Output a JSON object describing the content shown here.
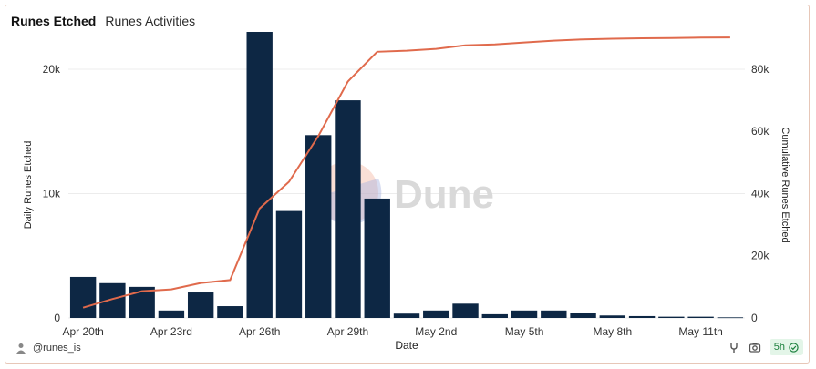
{
  "tabs": [
    {
      "label": "Runes Etched",
      "active": true
    },
    {
      "label": "Runes Activities",
      "active": false
    }
  ],
  "footer": {
    "author": "@runes_is",
    "refresh_label": "5h"
  },
  "watermark": "Dune",
  "colors": {
    "bar": "#0d2744",
    "line": "#e06a4c",
    "grid": "#ececec",
    "axis_text": "#333333"
  },
  "chart_data": {
    "type": "bar",
    "xlabel": "Date",
    "ylabel_left": "Daily Runes Etched",
    "ylabel_right": "Cumulative Runes Etched",
    "y_left_ticks": [
      {
        "v": 0,
        "label": "0"
      },
      {
        "v": 10000,
        "label": "10k"
      },
      {
        "v": 20000,
        "label": "20k"
      }
    ],
    "y_right_ticks": [
      {
        "v": 0,
        "label": "0"
      },
      {
        "v": 20000,
        "label": "20k"
      },
      {
        "v": 40000,
        "label": "40k"
      },
      {
        "v": 60000,
        "label": "60k"
      },
      {
        "v": 80000,
        "label": "80k"
      }
    ],
    "ylim_left": [
      0,
      23000
    ],
    "ylim_right": [
      0,
      92000
    ],
    "x_tick_labels": [
      {
        "idx": 0,
        "label": "Apr 20th"
      },
      {
        "idx": 3,
        "label": "Apr 23rd"
      },
      {
        "idx": 6,
        "label": "Apr 26th"
      },
      {
        "idx": 9,
        "label": "Apr 29th"
      },
      {
        "idx": 12,
        "label": "May 2nd"
      },
      {
        "idx": 15,
        "label": "May 5th"
      },
      {
        "idx": 18,
        "label": "May 8th"
      },
      {
        "idx": 21,
        "label": "May 11th"
      }
    ],
    "categories": [
      "2024-04-20",
      "2024-04-21",
      "2024-04-22",
      "2024-04-23",
      "2024-04-24",
      "2024-04-25",
      "2024-04-26",
      "2024-04-27",
      "2024-04-28",
      "2024-04-29",
      "2024-04-30",
      "2024-05-01",
      "2024-05-02",
      "2024-05-03",
      "2024-05-04",
      "2024-05-05",
      "2024-05-06",
      "2024-05-07",
      "2024-05-08",
      "2024-05-09",
      "2024-05-10",
      "2024-05-11",
      "2024-05-12"
    ],
    "series": [
      {
        "name": "Daily Runes Etched",
        "type": "bar",
        "axis": "left",
        "values": [
          3300,
          2800,
          2500,
          600,
          2050,
          950,
          23000,
          8600,
          14700,
          17500,
          9600,
          350,
          600,
          1150,
          300,
          600,
          600,
          400,
          200,
          150,
          100,
          100,
          50
        ]
      },
      {
        "name": "Cumulative Runes Etched",
        "type": "line",
        "axis": "right",
        "values": [
          3300,
          6100,
          8600,
          9200,
          11250,
          12200,
          35200,
          43800,
          58500,
          76000,
          85600,
          85950,
          86550,
          87700,
          88000,
          88600,
          89200,
          89600,
          89800,
          89950,
          90050,
          90150,
          90200
        ]
      }
    ]
  }
}
